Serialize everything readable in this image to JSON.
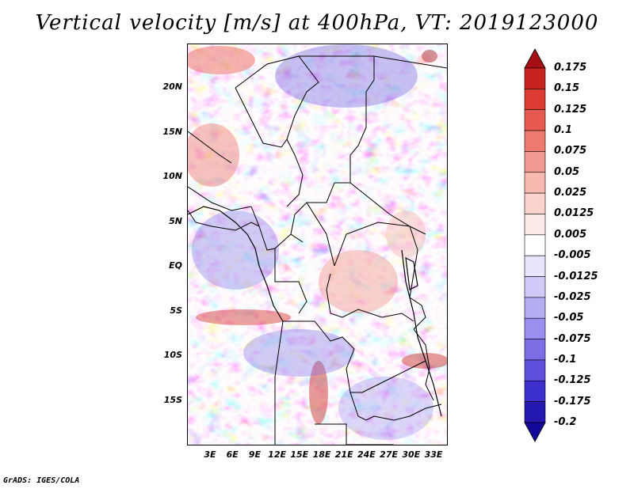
{
  "title": "Vertical velocity [m/s] at 400hPa, VT: 2019123000",
  "footer": "GrADS: IGES/COLA",
  "map": {
    "lat_ticks": [
      "20N",
      "15N",
      "10N",
      "5N",
      "EQ",
      "5S",
      "10S",
      "15S"
    ],
    "lon_ticks": [
      "3E",
      "6E",
      "9E",
      "12E",
      "15E",
      "18E",
      "21E",
      "24E",
      "27E",
      "30E",
      "33E"
    ]
  },
  "colorbar": {
    "labels": [
      "0.175",
      "0.15",
      "0.125",
      "0.1",
      "0.075",
      "0.05",
      "0.025",
      "0.0125",
      "0.005",
      "-0.005",
      "-0.0125",
      "-0.025",
      "-0.05",
      "-0.075",
      "-0.1",
      "-0.125",
      "-0.175",
      "-0.2"
    ],
    "colors": [
      "#a50f15",
      "#c8241f",
      "#dc3c32",
      "#e85a4f",
      "#ef7a70",
      "#f39b92",
      "#f7b8b0",
      "#fbd3ce",
      "#fdeae8",
      "#ffffff",
      "#e8e6fd",
      "#cfcaf8",
      "#b3adf2",
      "#9a8fee",
      "#7c6fe6",
      "#5e4fdc",
      "#3d2fcb",
      "#2418b0",
      "#12089a"
    ]
  }
}
